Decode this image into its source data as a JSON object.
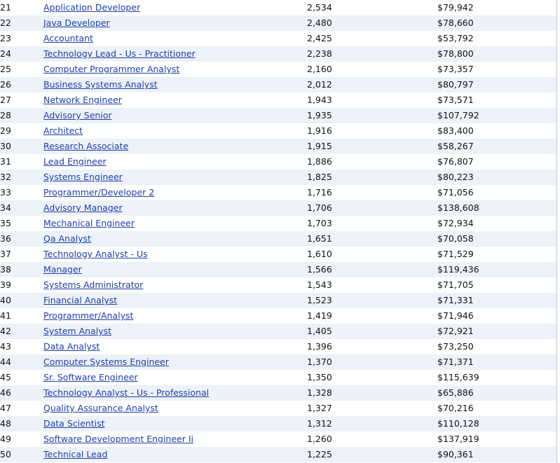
{
  "rows": [
    {
      "rank": "21",
      "title": "Application Developer",
      "count": "2,534",
      "salary": "$79,942"
    },
    {
      "rank": "22",
      "title": "Java Developer",
      "count": "2,480",
      "salary": "$78,660"
    },
    {
      "rank": "23",
      "title": "Accountant",
      "count": "2,425",
      "salary": "$53,792"
    },
    {
      "rank": "24",
      "title": "Technology Lead - Us - Practitioner",
      "count": "2,238",
      "salary": "$78,800"
    },
    {
      "rank": "25",
      "title": "Computer Programmer Analyst",
      "count": "2,160",
      "salary": "$73,357"
    },
    {
      "rank": "26",
      "title": "Business Systems Analyst",
      "count": "2,012",
      "salary": "$80,797"
    },
    {
      "rank": "27",
      "title": "Network Engineer",
      "count": "1,943",
      "salary": "$73,571"
    },
    {
      "rank": "28",
      "title": "Advisory Senior",
      "count": "1,935",
      "salary": "$107,792"
    },
    {
      "rank": "29",
      "title": "Architect",
      "count": "1,916",
      "salary": "$83,400"
    },
    {
      "rank": "30",
      "title": "Research Associate",
      "count": "1,915",
      "salary": "$58,267"
    },
    {
      "rank": "31",
      "title": "Lead Engineer",
      "count": "1,886",
      "salary": "$76,807"
    },
    {
      "rank": "32",
      "title": "Systems Engineer",
      "count": "1,825",
      "salary": "$80,223"
    },
    {
      "rank": "33",
      "title": "Programmer/Developer 2",
      "count": "1,716",
      "salary": "$71,056"
    },
    {
      "rank": "34",
      "title": "Advisory Manager",
      "count": "1,706",
      "salary": "$138,608"
    },
    {
      "rank": "35",
      "title": "Mechanical Engineer",
      "count": "1,703",
      "salary": "$72,934"
    },
    {
      "rank": "36",
      "title": "Qa Analyst",
      "count": "1,651",
      "salary": "$70,058"
    },
    {
      "rank": "37",
      "title": "Technology Analyst - Us",
      "count": "1,610",
      "salary": "$71,529"
    },
    {
      "rank": "38",
      "title": "Manager",
      "count": "1,566",
      "salary": "$119,436"
    },
    {
      "rank": "39",
      "title": "Systems Administrator",
      "count": "1,543",
      "salary": "$71,705"
    },
    {
      "rank": "40",
      "title": "Financial Analyst",
      "count": "1,523",
      "salary": "$71,331"
    },
    {
      "rank": "41",
      "title": "Programmer/Analyst",
      "count": "1,419",
      "salary": "$71,946"
    },
    {
      "rank": "42",
      "title": "System Analyst",
      "count": "1,405",
      "salary": "$72,921"
    },
    {
      "rank": "43",
      "title": "Data Analyst",
      "count": "1,396",
      "salary": "$73,250"
    },
    {
      "rank": "44",
      "title": "Computer Systems Engineer",
      "count": "1,370",
      "salary": "$71,371"
    },
    {
      "rank": "45",
      "title": "Sr. Software Engineer",
      "count": "1,350",
      "salary": "$115,639"
    },
    {
      "rank": "46",
      "title": "Technology Analyst - Us - Professional",
      "count": "1,328",
      "salary": "$65,886"
    },
    {
      "rank": "47",
      "title": "Quality Assurance Analyst",
      "count": "1,327",
      "salary": "$70,216"
    },
    {
      "rank": "48",
      "title": "Data Scientist",
      "count": "1,312",
      "salary": "$110,128"
    },
    {
      "rank": "49",
      "title": "Software Development Engineer Ii",
      "count": "1,260",
      "salary": "$137,919"
    },
    {
      "rank": "50",
      "title": "Technical Lead",
      "count": "1,225",
      "salary": "$90,361"
    }
  ]
}
